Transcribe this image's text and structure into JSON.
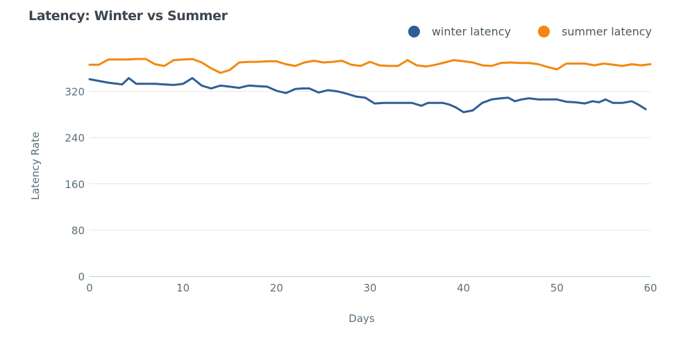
{
  "chart_data": {
    "type": "line",
    "title": "Latency: Winter vs Summer",
    "xlabel": "Days",
    "ylabel": "Latency Rate",
    "xlim": [
      0,
      60
    ],
    "ylim": [
      0,
      400
    ],
    "xticks": [
      0,
      10,
      20,
      30,
      40,
      50,
      60
    ],
    "yticks": [
      0,
      80,
      160,
      240,
      320
    ],
    "grid": true,
    "legend_position": "top-right",
    "series": [
      {
        "name": "winter latency",
        "color": "#2e5f96",
        "x": [
          0,
          1,
          2,
          3,
          3.5,
          4.2,
          5,
          6,
          7,
          8,
          9,
          10,
          11,
          12,
          13,
          14,
          15,
          16,
          17,
          18,
          19,
          20,
          21,
          22,
          22.8,
          23.5,
          24.5,
          25.5,
          26.5,
          27.5,
          28.5,
          29.5,
          30.5,
          31.5,
          32.5,
          33.5,
          34.5,
          35.5,
          36.2,
          37,
          37.8,
          38.5,
          39.2,
          40,
          41,
          42,
          43,
          44,
          44.8,
          45.5,
          46.2,
          47,
          48,
          49,
          50,
          51,
          52,
          53,
          53.8,
          54.5,
          55.2,
          56,
          57,
          58,
          58.7,
          59.5
        ],
        "y": [
          341,
          338,
          335,
          333,
          332,
          343,
          333,
          333,
          333,
          332,
          331,
          333,
          343,
          330,
          325,
          330,
          328,
          326,
          330,
          329,
          328,
          321,
          317,
          324,
          325,
          325,
          318,
          322,
          320,
          316,
          311,
          309,
          299,
          300,
          300,
          300,
          300,
          295,
          300,
          300,
          300,
          297,
          292,
          284,
          287,
          300,
          306,
          308,
          309,
          303,
          306,
          308,
          306,
          306,
          306,
          302,
          301,
          299,
          303,
          301,
          306,
          300,
          300,
          303,
          297,
          289
        ]
      },
      {
        "name": "summer latency",
        "color": "#f2880f",
        "x": [
          0,
          1,
          2,
          3,
          4,
          5,
          6,
          7,
          8,
          9,
          10,
          11,
          12,
          13,
          14,
          15,
          16,
          17,
          18,
          19,
          20,
          21,
          22,
          23,
          24,
          25,
          26,
          27,
          28,
          29,
          30,
          31,
          32,
          33,
          34,
          35,
          36,
          37,
          38,
          39,
          40,
          41,
          42,
          43,
          44,
          45,
          46,
          47,
          48,
          49,
          50,
          51,
          52,
          53,
          54,
          55,
          56,
          57,
          58,
          59,
          60
        ],
        "y": [
          366,
          366,
          375,
          375,
          375,
          376,
          376,
          367,
          364,
          374,
          375,
          376,
          370,
          360,
          352,
          357,
          370,
          371,
          371,
          372,
          372,
          367,
          364,
          370,
          373,
          370,
          371,
          373,
          366,
          364,
          371,
          365,
          364,
          364,
          374,
          365,
          363,
          366,
          370,
          374,
          372,
          370,
          365,
          364,
          369,
          370,
          369,
          369,
          367,
          362,
          358,
          368,
          368,
          368,
          365,
          368,
          366,
          364,
          367,
          365,
          367
        ]
      }
    ]
  }
}
